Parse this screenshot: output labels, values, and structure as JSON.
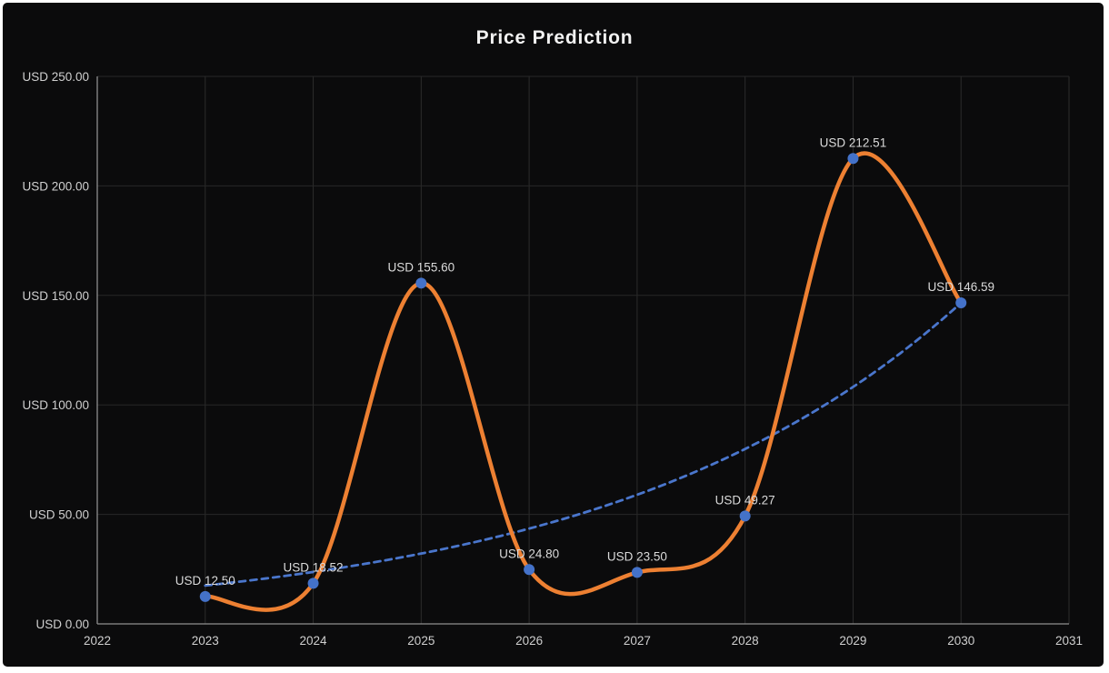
{
  "colors": {
    "chart_background": "#0b0b0c",
    "page_border": "#ffffff",
    "grid_vertical": "#2c2c2c",
    "grid_horizontal": "#272727",
    "axis_line": "#8f8f8f",
    "tick_text": "#cfcfcf",
    "point_label_text": "#dadada",
    "title_text": "#f2f2f2",
    "price_line": "#ed8032",
    "marker_fill": "#4472c9",
    "trend_line": "#4a76cc"
  },
  "chart_data": {
    "type": "line",
    "title": "Price Prediction",
    "x": [
      2023,
      2024,
      2025,
      2026,
      2027,
      2028,
      2029,
      2030
    ],
    "series": [
      {
        "name": "predicted-price",
        "values": [
          12.5,
          18.52,
          155.6,
          24.8,
          23.5,
          49.27,
          212.51,
          146.59
        ],
        "style": "smooth-solid",
        "color": "#ed8032"
      },
      {
        "name": "trend",
        "style": "dashed-exponential",
        "color": "#4a76cc",
        "start_year": 2023,
        "start_value": 17.5,
        "end_year": 2030,
        "end_value": 146.59
      }
    ],
    "point_labels": [
      "USD 12.50",
      "USD 18.52",
      "USD 155.60",
      "USD 24.80",
      "USD 23.50",
      "USD 49.27",
      "USD 212.51",
      "USD 146.59"
    ],
    "x_ticks": [
      2022,
      2023,
      2024,
      2025,
      2026,
      2027,
      2028,
      2029,
      2030,
      2031
    ],
    "y_ticks": [
      "USD 0.00",
      "USD 50.00",
      "USD 100.00",
      "USD 150.00",
      "USD 200.00",
      "USD 250.00"
    ],
    "y_min": 0,
    "y_max": 250,
    "y_step": 50,
    "grid": true,
    "legend": "none"
  }
}
